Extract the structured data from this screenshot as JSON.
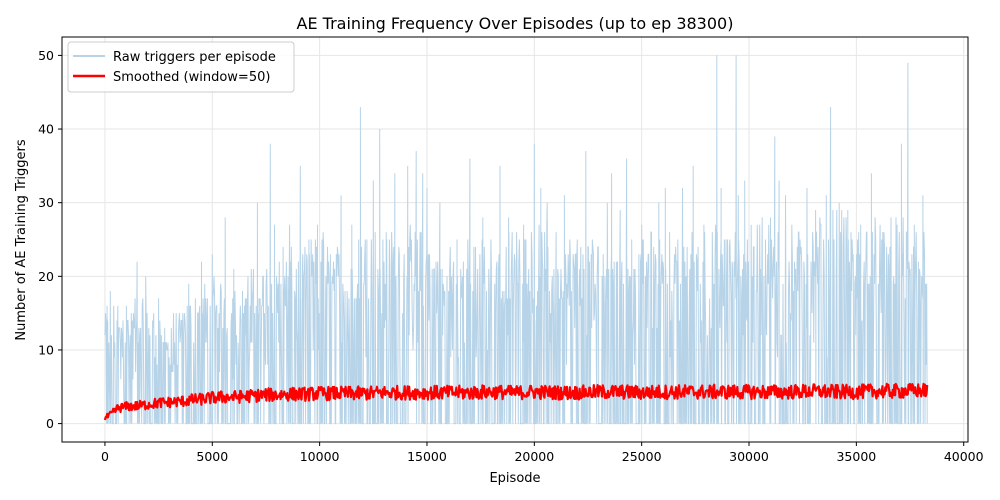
{
  "chart_data": {
    "type": "line",
    "title": "AE Training Frequency Over Episodes (up to ep 38300)",
    "xlabel": "Episode",
    "ylabel": "Number of AE Training Triggers",
    "xlim": [
      -2000,
      40200
    ],
    "ylim": [
      -2.5,
      52.5
    ],
    "xticks": [
      0,
      5000,
      10000,
      15000,
      20000,
      25000,
      30000,
      35000,
      40000
    ],
    "yticks": [
      0,
      10,
      20,
      30,
      40,
      50
    ],
    "grid": true,
    "legend_position": "top-left",
    "colors": {
      "raw": "#b7d3e8",
      "smoothed": "#ff0000"
    },
    "series": [
      {
        "name": "Raw triggers per episode",
        "style": "thin-light-blue",
        "x_range": [
          0,
          38300
        ],
        "typical_envelope": [
          [
            0,
            14
          ],
          [
            1000,
            16
          ],
          [
            2000,
            15
          ],
          [
            3000,
            13
          ],
          [
            4000,
            16
          ],
          [
            5000,
            18
          ],
          [
            6000,
            17
          ],
          [
            7000,
            20
          ],
          [
            8000,
            21
          ],
          [
            9000,
            22
          ],
          [
            10000,
            24
          ],
          [
            11000,
            23
          ],
          [
            12000,
            24
          ],
          [
            13000,
            24
          ],
          [
            14000,
            25
          ],
          [
            15000,
            24
          ],
          [
            16000,
            22
          ],
          [
            17000,
            23
          ],
          [
            18000,
            23
          ],
          [
            19000,
            24
          ],
          [
            20000,
            25
          ],
          [
            21000,
            24
          ],
          [
            22000,
            23
          ],
          [
            23000,
            24
          ],
          [
            24000,
            25
          ],
          [
            25000,
            23
          ],
          [
            26000,
            25
          ],
          [
            27000,
            24
          ],
          [
            28000,
            25
          ],
          [
            29000,
            24
          ],
          [
            30000,
            25
          ],
          [
            31000,
            26
          ],
          [
            32000,
            25
          ],
          [
            33000,
            26
          ],
          [
            34000,
            27
          ],
          [
            35000,
            25
          ],
          [
            36000,
            26
          ],
          [
            37000,
            26
          ],
          [
            38300,
            24
          ]
        ],
        "peaks": [
          [
            100,
            16
          ],
          [
            250,
            18
          ],
          [
            600,
            16
          ],
          [
            1000,
            16
          ],
          [
            1500,
            22
          ],
          [
            1900,
            20
          ],
          [
            2500,
            17
          ],
          [
            3900,
            19
          ],
          [
            4500,
            22
          ],
          [
            5000,
            23
          ],
          [
            5600,
            28
          ],
          [
            6000,
            21
          ],
          [
            6500,
            16
          ],
          [
            7100,
            30
          ],
          [
            7700,
            38
          ],
          [
            7900,
            27
          ],
          [
            8300,
            24
          ],
          [
            8600,
            27
          ],
          [
            9100,
            35
          ],
          [
            9500,
            25
          ],
          [
            9900,
            27
          ],
          [
            10500,
            23
          ],
          [
            11000,
            31
          ],
          [
            11500,
            27
          ],
          [
            11900,
            43
          ],
          [
            12200,
            25
          ],
          [
            12500,
            33
          ],
          [
            12800,
            40
          ],
          [
            13100,
            26
          ],
          [
            13500,
            34
          ],
          [
            14100,
            35
          ],
          [
            14500,
            37
          ],
          [
            14800,
            34
          ],
          [
            15000,
            32
          ],
          [
            15600,
            30
          ],
          [
            16400,
            25
          ],
          [
            17000,
            36
          ],
          [
            17600,
            28
          ],
          [
            18400,
            35
          ],
          [
            18800,
            28
          ],
          [
            19500,
            27
          ],
          [
            20000,
            38
          ],
          [
            20300,
            32
          ],
          [
            20600,
            30
          ],
          [
            21400,
            31
          ],
          [
            22000,
            25
          ],
          [
            22400,
            37
          ],
          [
            23400,
            30
          ],
          [
            23600,
            34
          ],
          [
            24000,
            29
          ],
          [
            24300,
            36
          ],
          [
            25000,
            27
          ],
          [
            25800,
            30
          ],
          [
            26100,
            32
          ],
          [
            26900,
            32
          ],
          [
            27400,
            35
          ],
          [
            27900,
            27
          ],
          [
            28500,
            50
          ],
          [
            28700,
            32
          ],
          [
            29000,
            25
          ],
          [
            29400,
            50
          ],
          [
            29500,
            31
          ],
          [
            29800,
            33
          ],
          [
            30500,
            27
          ],
          [
            31000,
            28
          ],
          [
            31200,
            39
          ],
          [
            31400,
            33
          ],
          [
            31700,
            31
          ],
          [
            32700,
            32
          ],
          [
            33100,
            29
          ],
          [
            33600,
            31
          ],
          [
            33800,
            43
          ],
          [
            34200,
            30
          ],
          [
            34600,
            29
          ],
          [
            35200,
            27
          ],
          [
            35700,
            34
          ],
          [
            36200,
            24
          ],
          [
            37100,
            38
          ],
          [
            37400,
            49
          ],
          [
            37700,
            27
          ],
          [
            38100,
            31
          ]
        ]
      },
      {
        "name": "Smoothed (window=50)",
        "style": "thick-red",
        "points": [
          [
            0,
            0.7
          ],
          [
            300,
            1.3
          ],
          [
            600,
            2.1
          ],
          [
            1000,
            2.3
          ],
          [
            1500,
            2.4
          ],
          [
            2000,
            2.6
          ],
          [
            2500,
            2.8
          ],
          [
            3000,
            2.9
          ],
          [
            3500,
            3.0
          ],
          [
            4000,
            3.2
          ],
          [
            4500,
            3.3
          ],
          [
            5000,
            3.5
          ],
          [
            5500,
            3.6
          ],
          [
            6000,
            3.6
          ],
          [
            6500,
            3.7
          ],
          [
            7000,
            3.8
          ],
          [
            7500,
            3.9
          ],
          [
            8000,
            3.9
          ],
          [
            8500,
            4.0
          ],
          [
            9000,
            4.0
          ],
          [
            9500,
            4.0
          ],
          [
            10000,
            4.1
          ],
          [
            11000,
            4.1
          ],
          [
            12000,
            4.1
          ],
          [
            13000,
            4.2
          ],
          [
            14000,
            4.2
          ],
          [
            15000,
            4.2
          ],
          [
            16000,
            4.2
          ],
          [
            17000,
            4.2
          ],
          [
            18000,
            4.3
          ],
          [
            19000,
            4.2
          ],
          [
            20000,
            4.3
          ],
          [
            21000,
            4.2
          ],
          [
            22000,
            4.2
          ],
          [
            23000,
            4.3
          ],
          [
            24000,
            4.3
          ],
          [
            25000,
            4.2
          ],
          [
            26000,
            4.3
          ],
          [
            27000,
            4.3
          ],
          [
            28000,
            4.3
          ],
          [
            29000,
            4.3
          ],
          [
            30000,
            4.3
          ],
          [
            31000,
            4.3
          ],
          [
            32000,
            4.3
          ],
          [
            33000,
            4.4
          ],
          [
            34000,
            4.3
          ],
          [
            35000,
            4.3
          ],
          [
            36000,
            4.4
          ],
          [
            37000,
            4.4
          ],
          [
            38300,
            4.5
          ]
        ]
      }
    ]
  }
}
